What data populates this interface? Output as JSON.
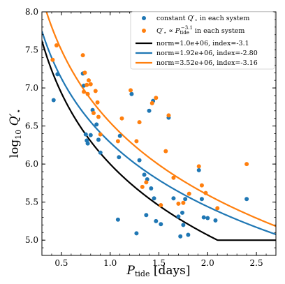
{
  "chart_data": {
    "type": "scatter",
    "title": "",
    "xlabel": "P_tide [days]",
    "ylabel": "log10 Q'*",
    "xlim": [
      0.3,
      2.7
    ],
    "ylim": [
      4.8,
      8.0
    ],
    "xticks": [
      "0.5",
      "1.0",
      "1.5",
      "2.0",
      "2.5"
    ],
    "xtick_values": [
      0.5,
      1.0,
      1.5,
      2.0,
      2.5
    ],
    "yticks": [
      "5.0",
      "5.5",
      "6.0",
      "6.5",
      "7.0",
      "7.5",
      "8.0"
    ],
    "ytick_values": [
      5.0,
      5.5,
      6.0,
      6.5,
      7.0,
      7.5,
      8.0
    ],
    "grid": false,
    "legend_position": "top-right",
    "series": [
      {
        "name": "constant Q'* in each system",
        "kind": "scatter",
        "color": "#1f77b4",
        "x": [
          0.42,
          0.46,
          0.72,
          0.73,
          0.75,
          0.76,
          0.77,
          0.8,
          0.82,
          0.86,
          0.88,
          0.9,
          1.08,
          1.09,
          1.1,
          1.22,
          1.27,
          1.3,
          1.35,
          1.37,
          1.38,
          1.4,
          1.42,
          1.44,
          1.45,
          1.47,
          1.52,
          1.6,
          1.65,
          1.7,
          1.72,
          1.74,
          1.75,
          1.77,
          1.8,
          1.91,
          1.94,
          1.96,
          2.0,
          2.08,
          2.4
        ],
        "y": [
          6.84,
          7.18,
          7.19,
          7.03,
          6.39,
          6.31,
          6.27,
          6.38,
          6.71,
          6.52,
          6.32,
          6.15,
          5.27,
          6.09,
          6.37,
          6.92,
          5.09,
          6.05,
          5.86,
          5.33,
          5.8,
          6.7,
          5.68,
          6.83,
          5.55,
          5.25,
          5.21,
          6.61,
          5.55,
          5.31,
          5.05,
          5.36,
          5.2,
          5.54,
          5.07,
          5.92,
          5.54,
          5.3,
          5.29,
          5.26,
          5.54
        ]
      },
      {
        "name": "Q'* ∝ P_tide^-3.1 in each system",
        "kind": "scatter",
        "color": "#ff7f0e",
        "x": [
          0.41,
          0.45,
          0.72,
          0.73,
          0.74,
          0.76,
          0.77,
          0.78,
          0.8,
          0.83,
          0.85,
          0.87,
          0.88,
          0.9,
          1.08,
          1.12,
          1.21,
          1.27,
          1.3,
          1.33,
          1.37,
          1.43,
          1.47,
          1.52,
          1.57,
          1.6,
          1.65,
          1.7,
          1.75,
          1.81,
          1.91,
          1.94,
          1.98,
          2.1,
          2.4
        ],
        "y": [
          7.37,
          7.56,
          7.43,
          6.95,
          7.2,
          7.04,
          6.92,
          7.1,
          7.05,
          6.67,
          6.96,
          6.81,
          6.62,
          6.39,
          6.3,
          6.6,
          6.97,
          6.3,
          6.55,
          5.7,
          5.76,
          6.8,
          6.87,
          5.46,
          6.17,
          6.64,
          5.82,
          5.48,
          5.49,
          5.61,
          5.97,
          5.72,
          5.62,
          5.42,
          6.0
        ]
      },
      {
        "name": "norm=1.0e+06, index=-3.1",
        "kind": "line",
        "color": "#000000",
        "norm": 1000000.0,
        "index": -3.1,
        "floor": 5.0
      },
      {
        "name": "norm=1.92e+06, index=-2.80",
        "kind": "line",
        "color": "#1f77b4",
        "norm": 1920000.0,
        "index": -2.8
      },
      {
        "name": "norm=3.52e+06, index=-3.16",
        "kind": "line",
        "color": "#ff7f0e",
        "norm": 3520000.0,
        "index": -3.16
      }
    ]
  },
  "legend": {
    "scatter_blue_prefix": "constant ",
    "scatter_blue_symbol": "Q′",
    "scatter_blue_sub": "⋆",
    "scatter_blue_suffix": " in each system",
    "scatter_orange_symbol": "Q′",
    "scatter_orange_sub": "⋆",
    "scatter_orange_mid": " ∝ ",
    "scatter_orange_p": "P",
    "scatter_orange_psub": "tide",
    "scatter_orange_psup": "−3.1",
    "scatter_orange_suffix": " in each system",
    "line_black": "norm=1.0e+06, index=-3.1",
    "line_blue": "norm=1.92e+06, index=-2.80",
    "line_orange": "norm=3.52e+06, index=-3.16"
  },
  "axes_labels": {
    "x_main": "P",
    "x_sub": "tide",
    "x_unit": " [days]",
    "y_log": "log",
    "y_logsub": "10",
    "y_q": " Q′",
    "y_qsub": "⋆"
  }
}
